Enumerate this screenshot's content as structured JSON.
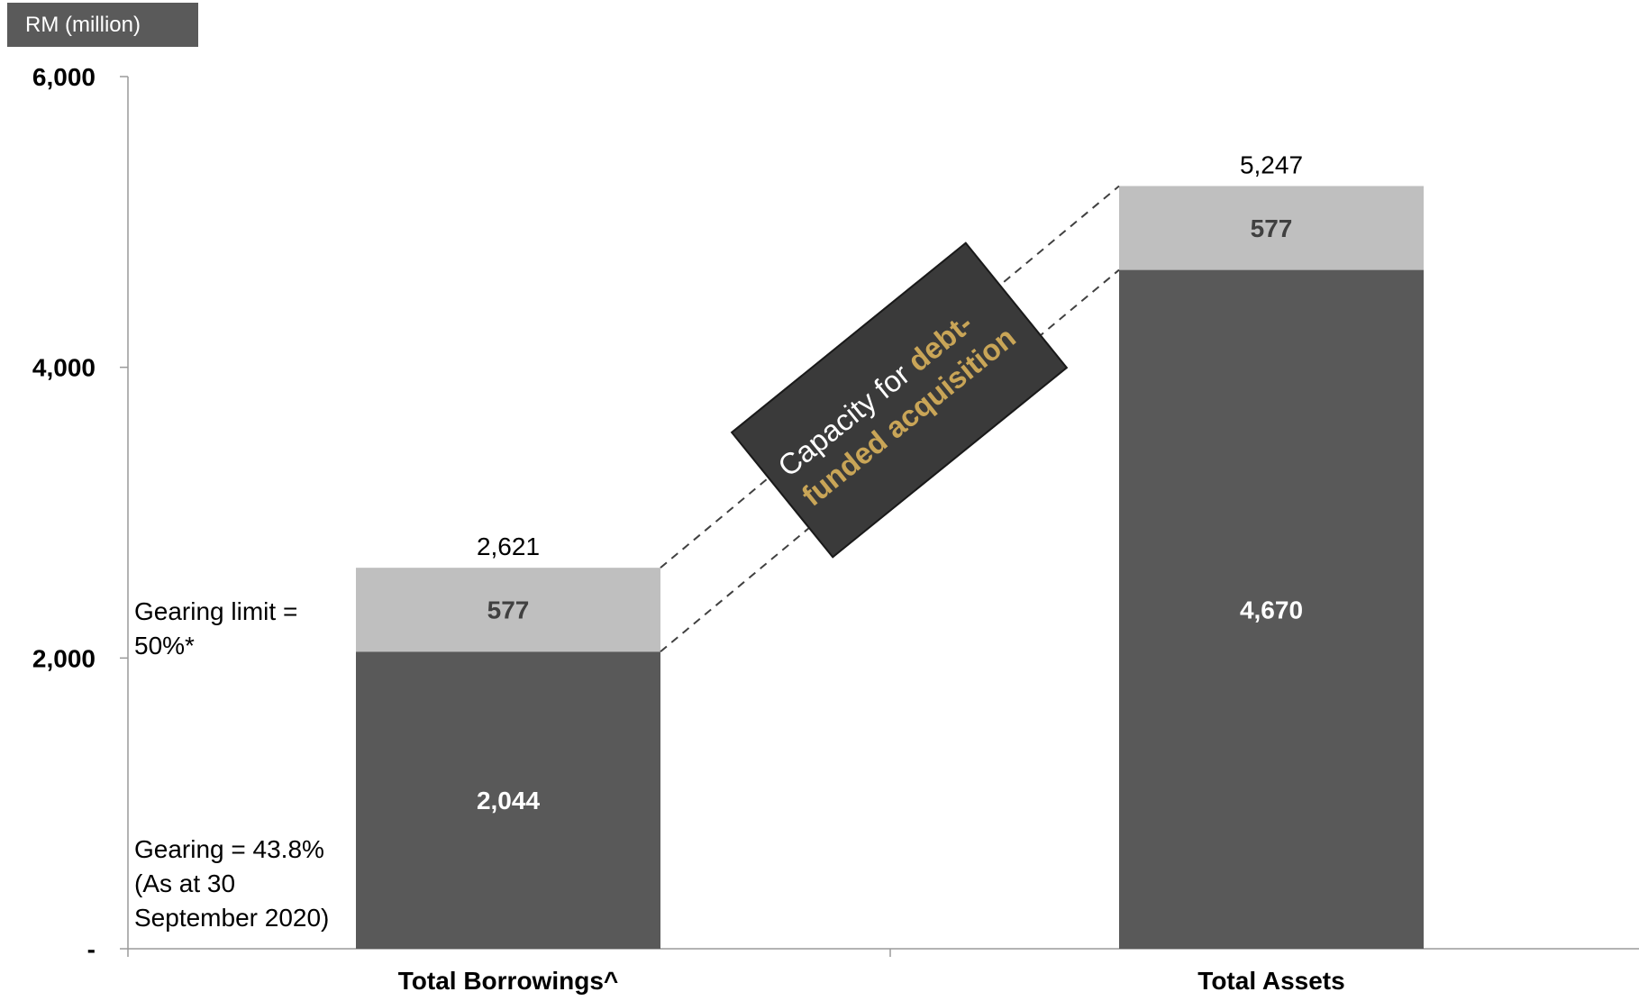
{
  "unit_label": "RM (million)",
  "notes": {
    "gearing_limit": "Gearing limit =\n50%*",
    "gearing_current": "Gearing = 43.8%\n(As at 30\nSeptember 2020)"
  },
  "callout": {
    "plain": "Capacity for ",
    "highlight": "debt-funded acquisition"
  },
  "colors": {
    "base_bar": "#595959",
    "top_bar": "#bfbfbf",
    "callout_bg": "#3a3a3a",
    "callout_highlight": "#c9a557"
  },
  "chart_data": {
    "type": "bar",
    "stacked": true,
    "categories": [
      "Total Borrowings^",
      "Total Assets"
    ],
    "series": [
      {
        "values": [
          2044,
          4670
        ]
      },
      {
        "values": [
          577,
          577
        ]
      }
    ],
    "totals": [
      "2,621",
      "5,247"
    ],
    "segment_labels": [
      [
        "2,044",
        "577"
      ],
      [
        "4,670",
        "577"
      ]
    ],
    "yticks": [
      "-",
      "2,000",
      "4,000",
      "6,000"
    ],
    "ylim": [
      0,
      6000
    ],
    "grid": false,
    "legend": "none"
  }
}
